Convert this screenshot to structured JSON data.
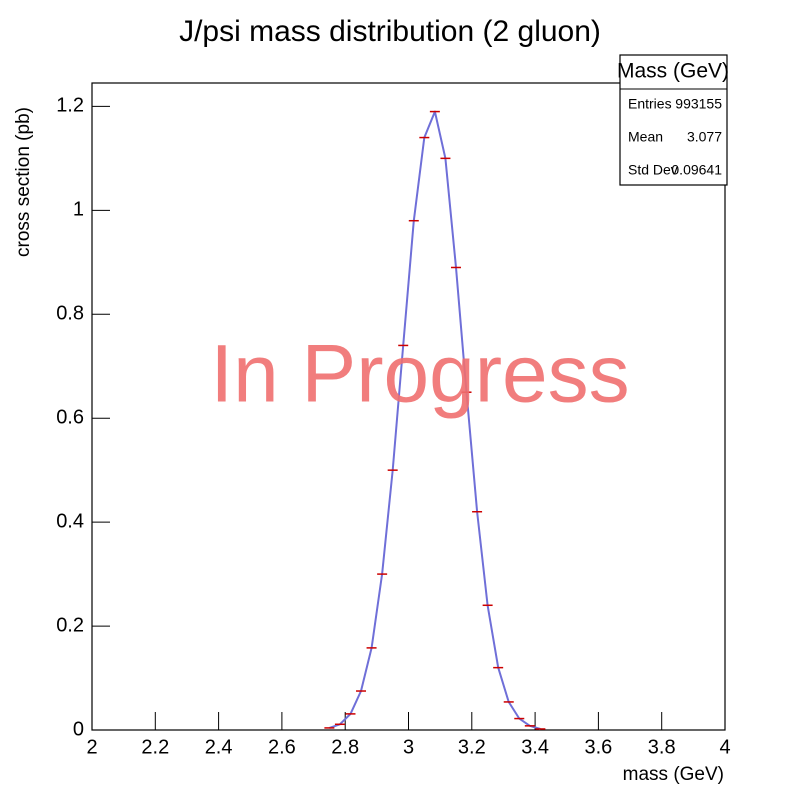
{
  "chart_data": {
    "type": "line",
    "title": "J/psi mass distribution (2 gluon)",
    "x_label": "mass (GeV)",
    "y_label": "cross section (pb)",
    "x": [
      2.75,
      2.7833,
      2.8167,
      2.85,
      2.8833,
      2.9167,
      2.95,
      2.9833,
      3.0167,
      3.05,
      3.0833,
      3.1167,
      3.15,
      3.1833,
      3.2167,
      3.25,
      3.2833,
      3.3167,
      3.35,
      3.3833,
      3.4167
    ],
    "values": [
      0.004,
      0.011,
      0.031,
      0.075,
      0.158,
      0.3,
      0.5,
      0.74,
      0.98,
      1.14,
      1.19,
      1.1,
      0.89,
      0.65,
      0.42,
      0.24,
      0.12,
      0.054,
      0.022,
      0.008,
      0.002
    ],
    "color": "#cc0000",
    "line_color": "#6f6fd8",
    "xlim": [
      2,
      4
    ],
    "ylim": [
      0,
      1.245
    ],
    "xticks": [
      2,
      2.2,
      2.4,
      2.6,
      2.8,
      3,
      3.2,
      3.4,
      3.6,
      3.8,
      4
    ],
    "yticks": [
      0,
      0.2,
      0.4,
      0.6,
      0.8,
      1,
      1.2
    ],
    "annotation": "In Progress",
    "stats_box": {
      "title": "Mass (GeV)",
      "rows": [
        {
          "label": "Entries",
          "value": "993155"
        },
        {
          "label": "Mean",
          "value": "3.077"
        },
        {
          "label": "Std Dev",
          "value": "0.09641"
        }
      ]
    }
  }
}
